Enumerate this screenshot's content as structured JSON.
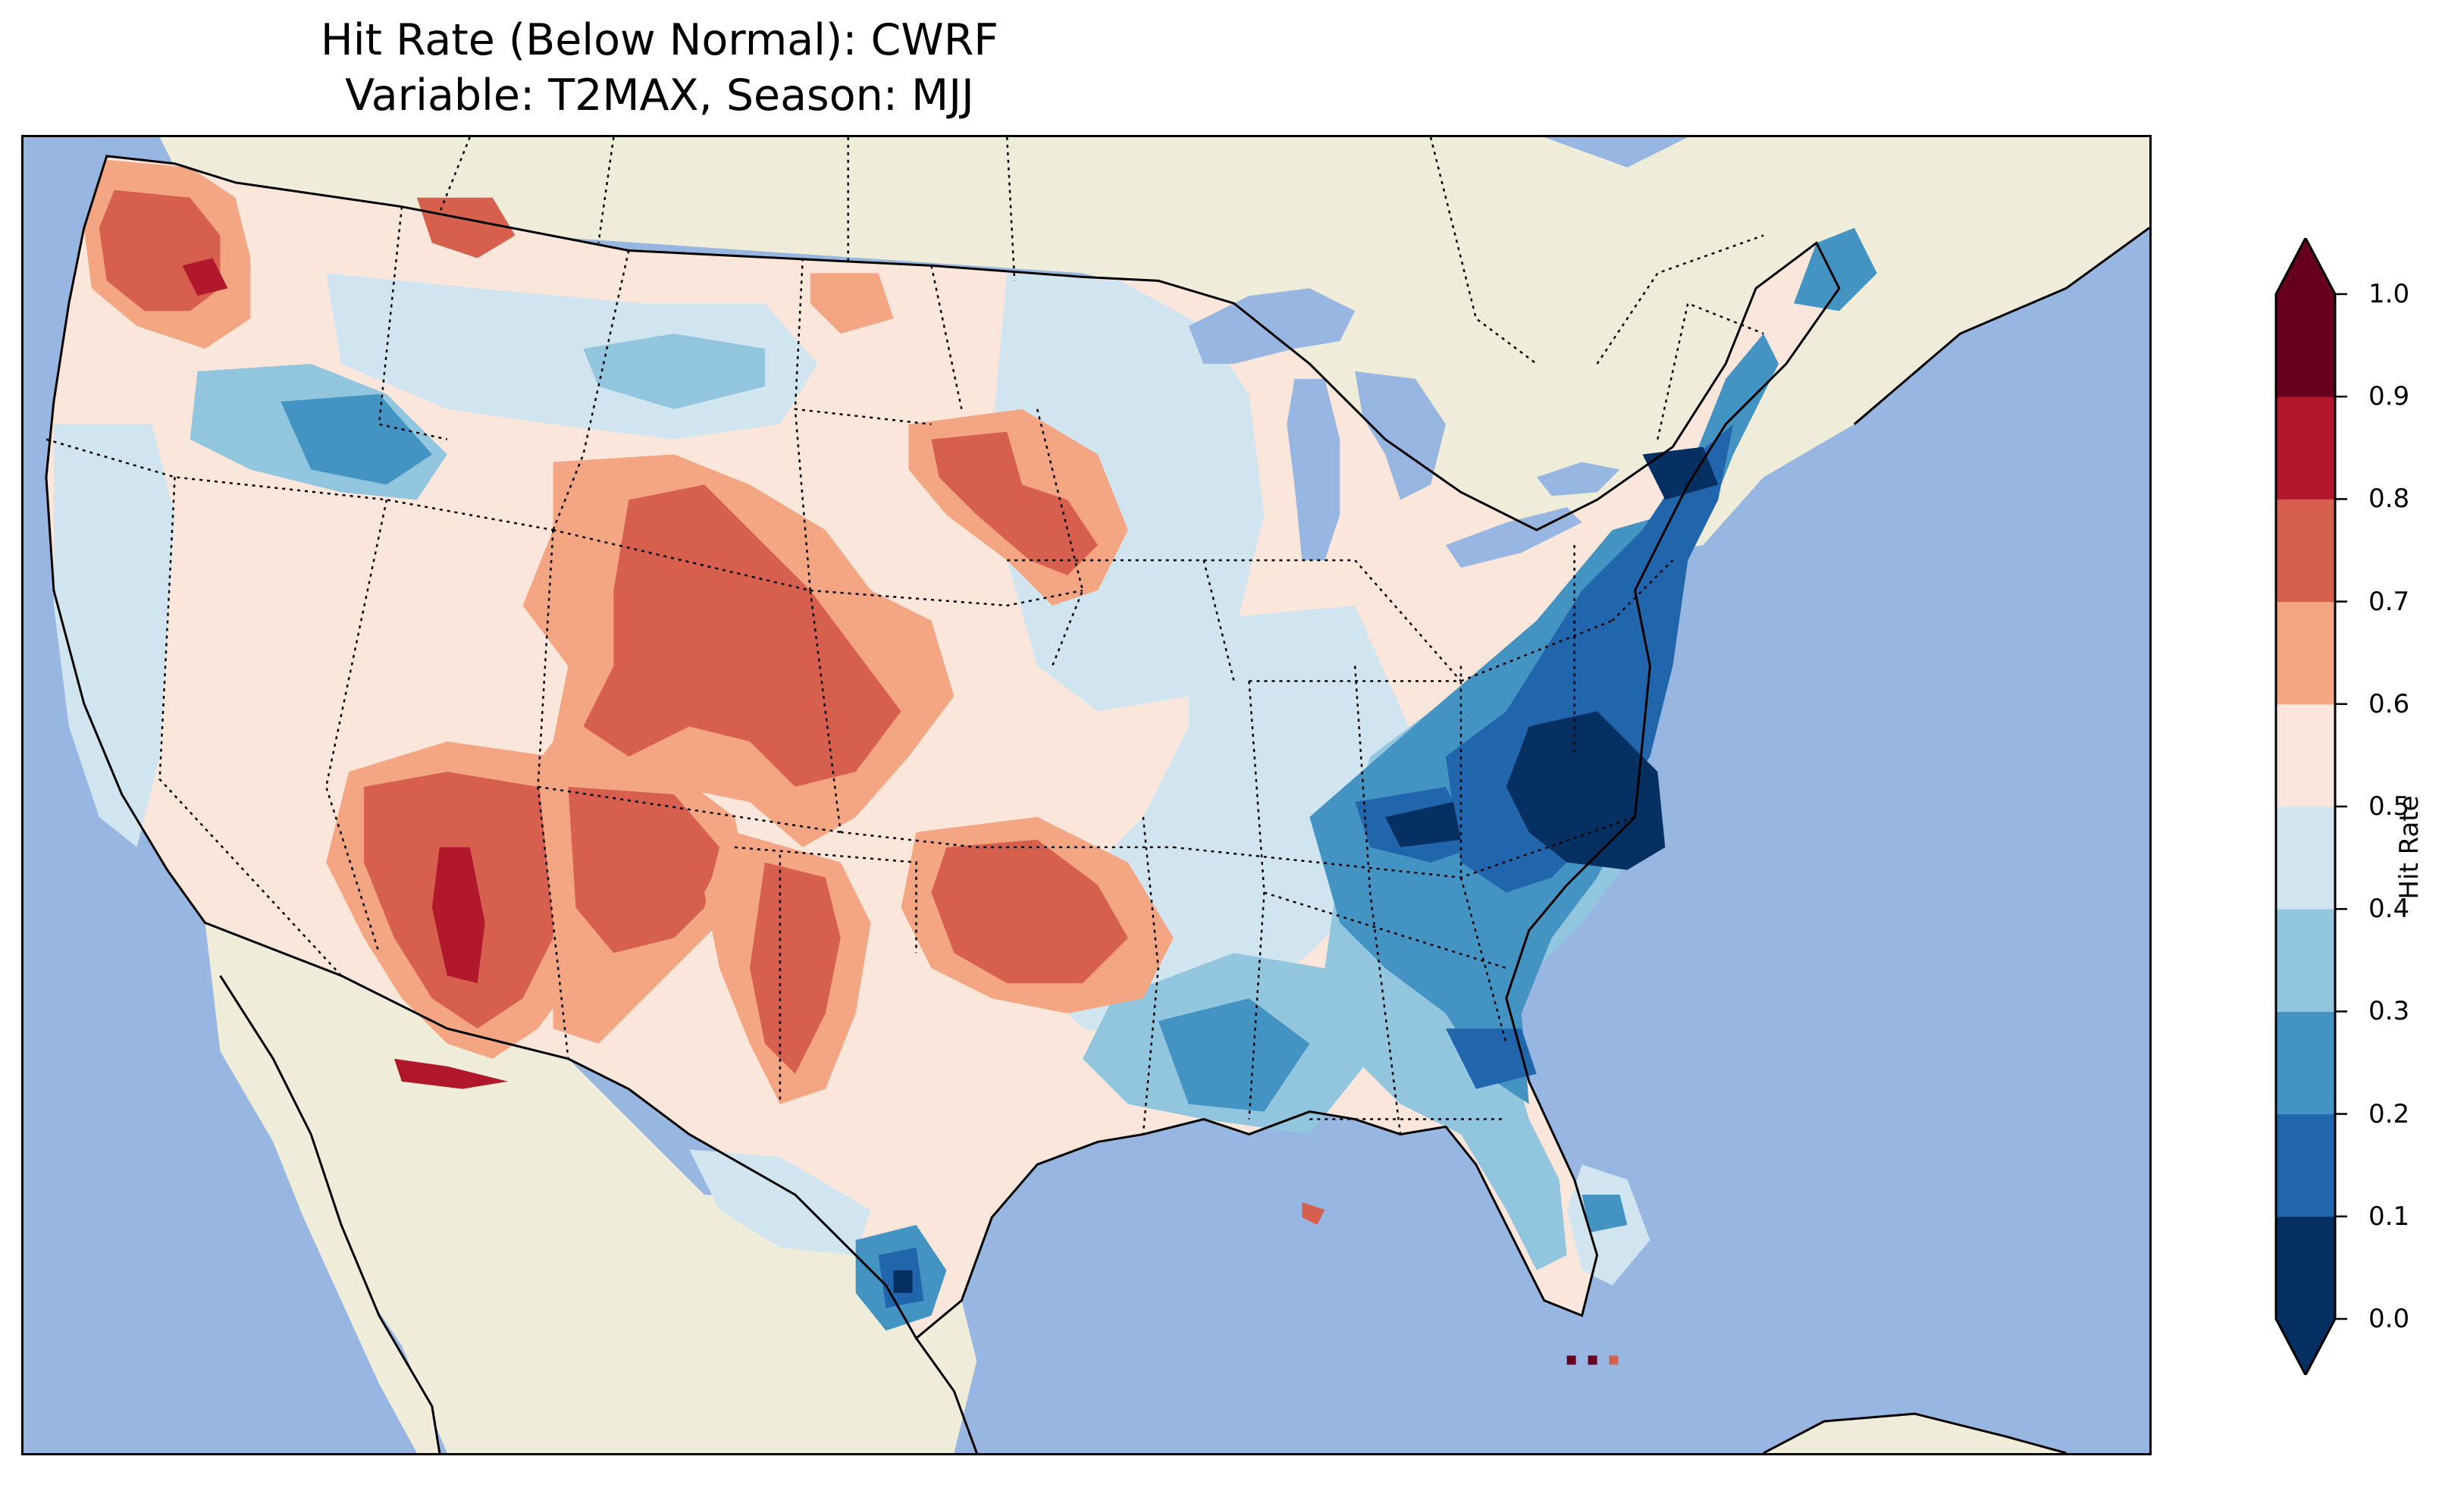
{
  "title": {
    "line1": "Hit Rate (Below Normal): CWRF",
    "line2": "Variable: T2MAX, Season: MJJ"
  },
  "colors": {
    "ocean": "#97b6e1",
    "land": "#efedda",
    "lakes": "#97b6e1",
    "border": "#000000"
  },
  "colorbar": {
    "label": "Hit Rate",
    "ticks": [
      "0.0",
      "0.1",
      "0.2",
      "0.3",
      "0.4",
      "0.5",
      "0.6",
      "0.7",
      "0.8",
      "0.9",
      "1.0"
    ],
    "bins": [
      {
        "range": "0.0-0.1",
        "color": "#053061"
      },
      {
        "range": "0.1-0.2",
        "color": "#2166ac"
      },
      {
        "range": "0.2-0.3",
        "color": "#4393c3"
      },
      {
        "range": "0.3-0.4",
        "color": "#92c5de"
      },
      {
        "range": "0.4-0.5",
        "color": "#d1e5f0"
      },
      {
        "range": "0.5-0.6",
        "color": "#fbe6dc"
      },
      {
        "range": "0.6-0.7",
        "color": "#f4a582"
      },
      {
        "range": "0.7-0.8",
        "color": "#d6604d"
      },
      {
        "range": "0.8-0.9",
        "color": "#b2182b"
      },
      {
        "range": "0.9-1.0",
        "color": "#67001f"
      }
    ],
    "extend_low_color": "#053061",
    "extend_high_color": "#67001f"
  }
}
